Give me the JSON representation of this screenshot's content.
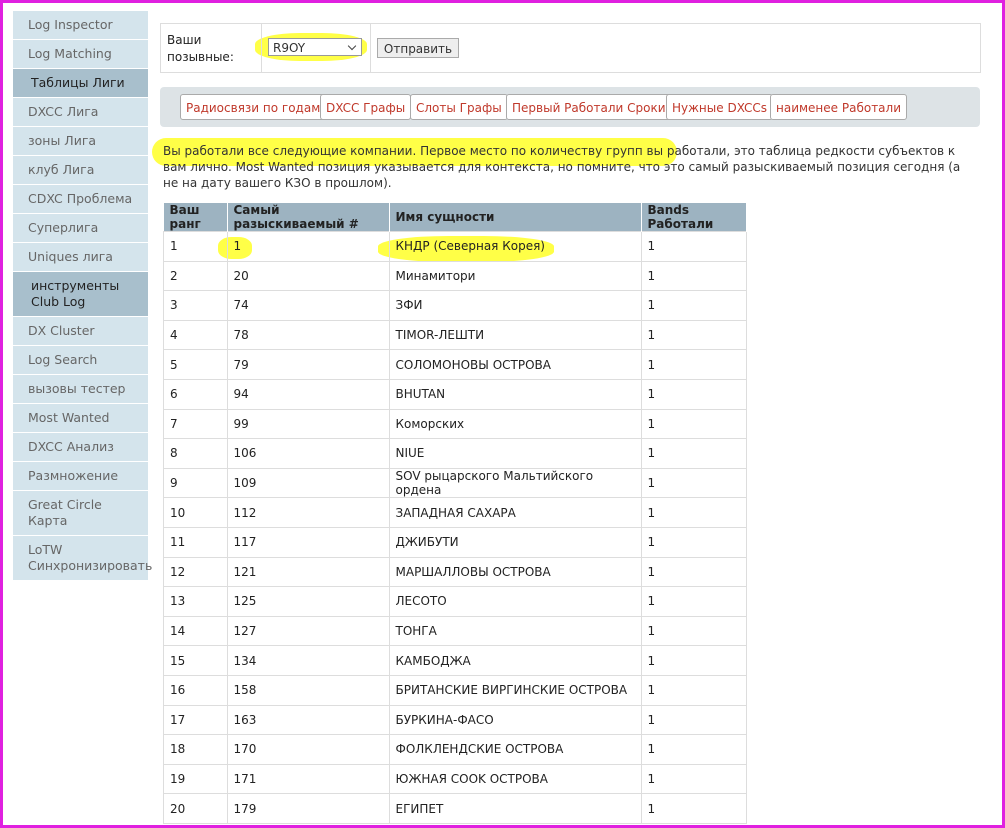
{
  "sidebar": {
    "items": [
      {
        "label": "Log Inspector",
        "header": false
      },
      {
        "label": "Log Matching",
        "header": false
      },
      {
        "label": "Таблицы Лиги",
        "header": true
      },
      {
        "label": "DXCC Лига",
        "header": false
      },
      {
        "label": "зоны Лига",
        "header": false
      },
      {
        "label": "клуб Лига",
        "header": false
      },
      {
        "label": "CDXC Проблема",
        "header": false
      },
      {
        "label": "Суперлига",
        "header": false
      },
      {
        "label": "Uniques лига",
        "header": false
      },
      {
        "label": "инструменты Club Log",
        "header": true
      },
      {
        "label": "DX Cluster",
        "header": false
      },
      {
        "label": "Log Search",
        "header": false
      },
      {
        "label": "вызовы тестер",
        "header": false
      },
      {
        "label": "Most Wanted",
        "header": false
      },
      {
        "label": "DXCC Анализ",
        "header": false
      },
      {
        "label": "Размножение",
        "header": false
      },
      {
        "label": "Great Circle Карта",
        "header": false
      },
      {
        "label": "LoTW Синхронизировать",
        "header": false
      }
    ]
  },
  "form": {
    "label": "Ваши позывные:",
    "callsign": "R9OY",
    "button": "Отправить"
  },
  "tabs": [
    "Радиосвязи по годам",
    "DXCC Графы",
    "Слоты Графы",
    "Первый Работали Сроки",
    "Нужные DXCCs",
    "наименее Работали"
  ],
  "intro": {
    "highlighted": "Вы работали все следующие компании. Первое место по количеству групп вы работали,",
    "rest": " это таблица редкости субъектов к вам лично. Most Wanted позиция указывается для контекста, но помните, что это самый разыскиваемый позиция сегодня (а не на дату вашего КЗО в прошлом)."
  },
  "table": {
    "headers": [
      "Ваш ранг",
      "Самый разыскиваемый #",
      "Имя сущности",
      "Bands Работали"
    ],
    "rows": [
      [
        1,
        1,
        "КНДР (Северная Корея)",
        1
      ],
      [
        2,
        20,
        "Минамитори",
        1
      ],
      [
        3,
        74,
        "ЗФИ",
        1
      ],
      [
        4,
        78,
        "TIMOR-ЛЕШТИ",
        1
      ],
      [
        5,
        79,
        "СОЛОМОНОВЫ ОСТРОВА",
        1
      ],
      [
        6,
        94,
        "BHUTAN",
        1
      ],
      [
        7,
        99,
        "Коморских",
        1
      ],
      [
        8,
        106,
        "NIUE",
        1
      ],
      [
        9,
        109,
        "SOV рыцарского Мальтийского ордена",
        1
      ],
      [
        10,
        112,
        "ЗАПАДНАЯ САХАРА",
        1
      ],
      [
        11,
        117,
        "ДЖИБУТИ",
        1
      ],
      [
        12,
        121,
        "МАРШАЛЛОВЫ ОСТРОВА",
        1
      ],
      [
        13,
        125,
        "ЛЕСОТО",
        1
      ],
      [
        14,
        127,
        "ТОНГА",
        1
      ],
      [
        15,
        134,
        "КАМБОДЖА",
        1
      ],
      [
        16,
        158,
        "БРИТАНСКИЕ ВИРГИНСКИЕ ОСТРОВА",
        1
      ],
      [
        17,
        163,
        "БУРКИНА-ФАСО",
        1
      ],
      [
        18,
        170,
        "ФОЛКЛЕНДСКИЕ ОСТРОВА",
        1
      ],
      [
        19,
        171,
        "ЮЖНАЯ COOK ОСТРОВА",
        1
      ],
      [
        20,
        179,
        "ЕГИПЕТ",
        1
      ]
    ]
  }
}
